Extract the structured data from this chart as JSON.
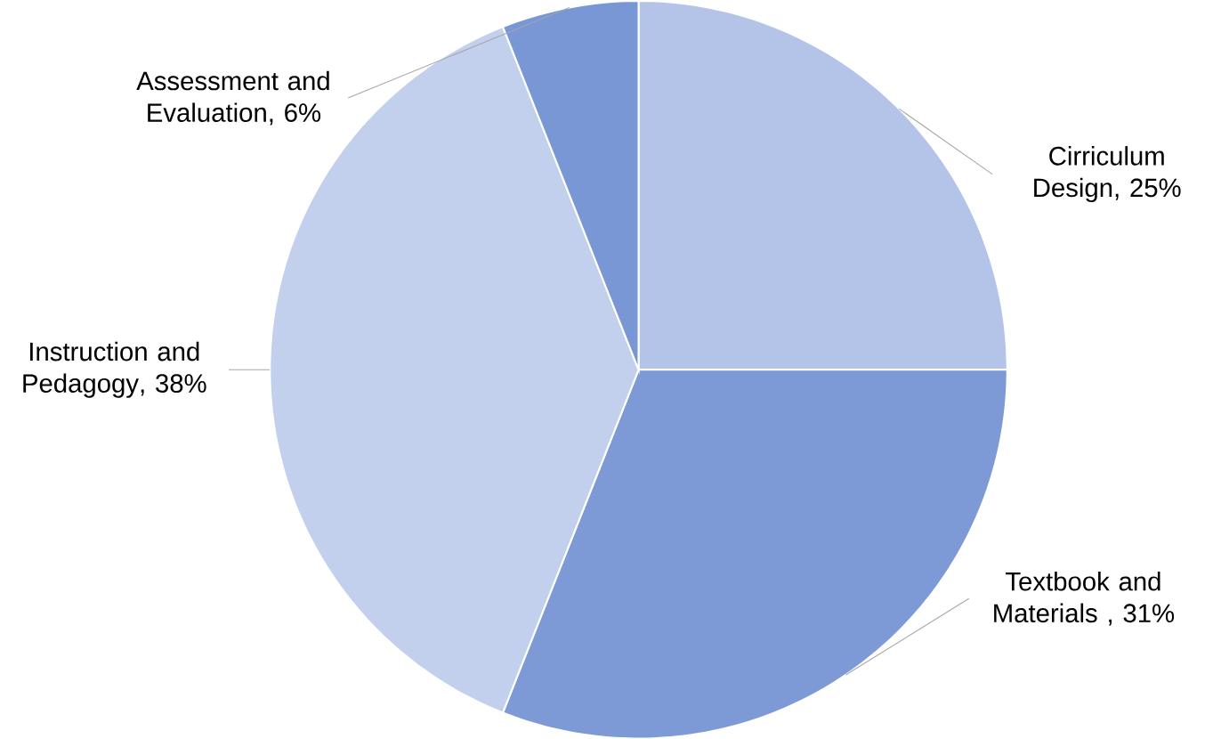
{
  "chart_data": {
    "type": "pie",
    "categories": [
      "Cirriculum Design",
      "Textbook and Materials",
      "Instruction and Pedagogy",
      "Assessment and Evaluation"
    ],
    "values": [
      25,
      31,
      38,
      6
    ],
    "value_labels": [
      ", 25%",
      " , 31%",
      ", 38%",
      ", 6%"
    ],
    "colors": [
      "#b3c4e8",
      "#7e9ad6",
      "#c2d0ee",
      "#7a97d5"
    ]
  }
}
